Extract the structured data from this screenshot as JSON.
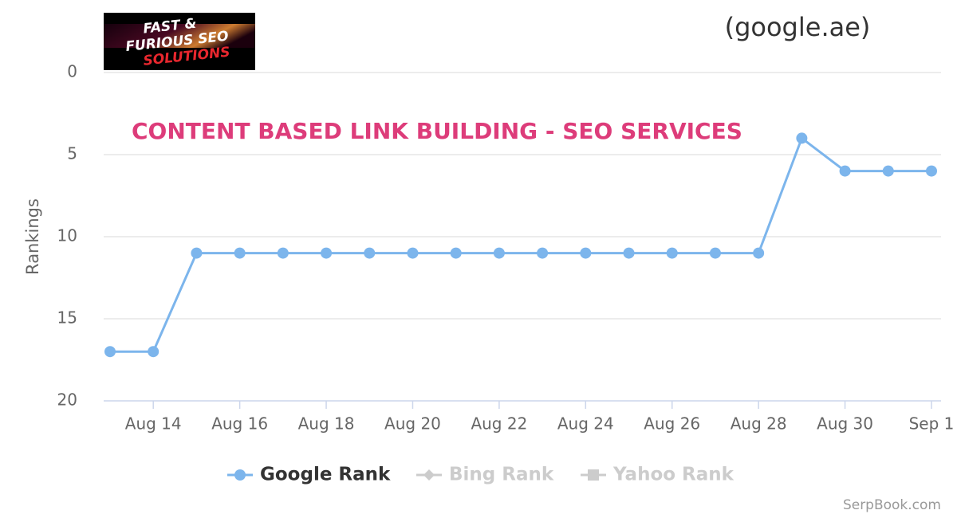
{
  "chart_data": {
    "type": "line",
    "logo": {
      "lines": [
        "FAST &",
        "FURIOUS SEO",
        "SOLUTIONS"
      ]
    },
    "title": "(google.ae)",
    "annotation": "CONTENT BASED LINK BUILDING - SEO SERVICES",
    "y_label": "Rankings",
    "credit": "SerpBook.com",
    "categories": [
      null,
      "Aug 14",
      null,
      "Aug 16",
      null,
      "Aug 18",
      null,
      "Aug 20",
      null,
      "Aug 22",
      null,
      "Aug 24",
      null,
      "Aug 26",
      null,
      "Aug 28",
      null,
      "Aug 30",
      null,
      "Sep 1"
    ],
    "ylim": [
      0,
      20
    ],
    "yticks": [
      0,
      5,
      10,
      15,
      20
    ],
    "reversed": true,
    "grid": true,
    "legend": "bottom",
    "series": [
      {
        "name": "Google Rank",
        "color": "#7cb5ec",
        "marker": "circle",
        "visible": true,
        "values": [
          17,
          17,
          11,
          11,
          11,
          11,
          11,
          11,
          11,
          11,
          11,
          11,
          11,
          11,
          11,
          11,
          4,
          6,
          6,
          6
        ]
      },
      {
        "name": "Bing Rank",
        "color": "#cccccc",
        "marker": "diamond",
        "visible": false,
        "values": [
          null,
          null,
          null,
          null,
          null,
          null,
          null,
          null,
          null,
          null,
          null,
          null,
          null,
          null,
          null,
          null,
          null,
          null,
          null,
          null
        ]
      },
      {
        "name": "Yahoo Rank",
        "color": "#cccccc",
        "marker": "square",
        "visible": false,
        "values": [
          null,
          null,
          null,
          null,
          null,
          null,
          null,
          null,
          null,
          null,
          null,
          null,
          null,
          null,
          null,
          null,
          null,
          null,
          null,
          null
        ]
      }
    ]
  }
}
